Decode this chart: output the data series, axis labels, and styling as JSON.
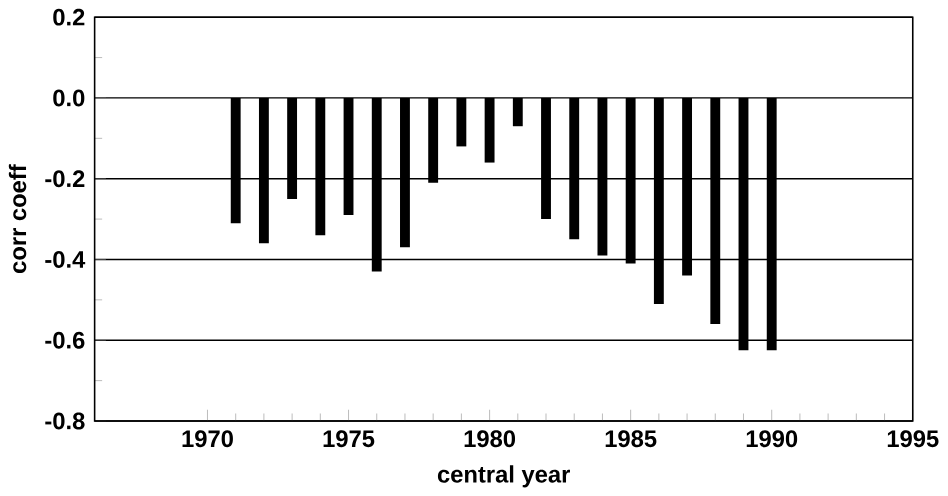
{
  "chart_data": {
    "type": "bar",
    "xlabel": "central year",
    "ylabel": "corr coeff",
    "x": [
      1971,
      1972,
      1973,
      1974,
      1975,
      1976,
      1977,
      1978,
      1979,
      1980,
      1981,
      1982,
      1983,
      1984,
      1985,
      1986,
      1987,
      1988,
      1989,
      1990
    ],
    "values": [
      -0.31,
      -0.36,
      -0.25,
      -0.34,
      -0.29,
      -0.43,
      -0.37,
      -0.21,
      -0.12,
      -0.16,
      -0.07,
      -0.3,
      -0.35,
      -0.39,
      -0.41,
      -0.51,
      -0.44,
      -0.56,
      -0.625,
      -0.625
    ],
    "color": "#000000",
    "xlim": [
      1966,
      1995
    ],
    "xticks": [
      1970,
      1975,
      1980,
      1985,
      1990,
      1995
    ],
    "ylim": [
      -0.8,
      0.2
    ],
    "yticks": [
      0.2,
      {
        "value": 0.0,
        "label": "0.0"
      },
      -0.2,
      -0.4,
      -0.6,
      -0.8
    ],
    "grid": "y"
  }
}
